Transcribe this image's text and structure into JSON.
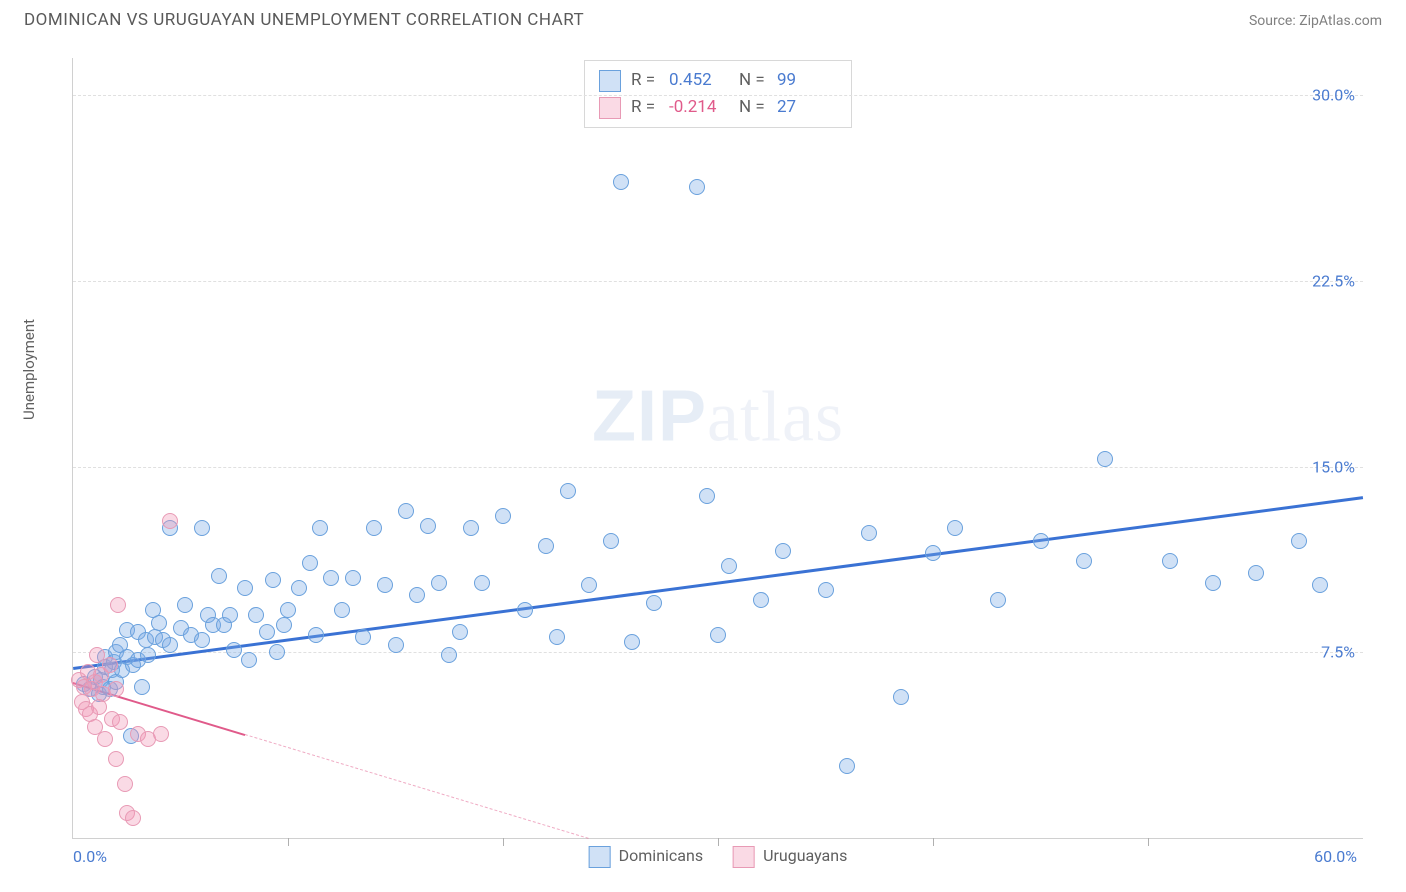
{
  "header": {
    "title": "DOMINICAN VS URUGUAYAN UNEMPLOYMENT CORRELATION CHART",
    "source": "Source: ZipAtlas.com"
  },
  "watermark": {
    "bold": "ZIP",
    "light": "atlas"
  },
  "chart": {
    "type": "scatter",
    "ylabel": "Unemployment",
    "xlim": [
      0,
      60
    ],
    "ylim": [
      0,
      31.5
    ],
    "grid_y": [
      7.5,
      15.0,
      22.5,
      30.0
    ],
    "xticks_minor": [
      10,
      20,
      30,
      40,
      50
    ],
    "xtick_labels": [
      {
        "v": 0,
        "t": "0.0%",
        "anchor": "left"
      },
      {
        "v": 60,
        "t": "60.0%",
        "anchor": "right"
      }
    ],
    "ytick_labels": [
      {
        "v": 7.5,
        "t": "7.5%"
      },
      {
        "v": 15.0,
        "t": "15.0%"
      },
      {
        "v": 22.5,
        "t": "22.5%"
      },
      {
        "v": 30.0,
        "t": "30.0%"
      }
    ],
    "background_color": "#ffffff",
    "grid_color": "#e0e0e0",
    "axis_color": "#d0d0d0",
    "tick_label_color": "#4a7bd0",
    "marker_radius": 8,
    "marker_border": 1,
    "series": [
      {
        "key": "dominicans",
        "label": "Dominicans",
        "fill": "rgba(120,170,230,0.35)",
        "stroke": "#6aa1dd",
        "reg_color": "#3a72d4",
        "reg_width": 3,
        "reg": {
          "x0": 0,
          "y0": 6.9,
          "x1": 60,
          "y1": 13.8,
          "solid_to_x": 60
        },
        "stats": {
          "R": "0.452",
          "N": "99",
          "r_color": "#4a7bd0",
          "n_color": "#4a7bd0"
        },
        "points": [
          [
            0.5,
            6.2
          ],
          [
            0.8,
            6.0
          ],
          [
            1.0,
            6.5
          ],
          [
            1.2,
            5.8
          ],
          [
            1.3,
            6.4
          ],
          [
            1.4,
            6.1
          ],
          [
            1.5,
            6.9
          ],
          [
            1.5,
            7.3
          ],
          [
            1.7,
            6.0
          ],
          [
            1.8,
            6.8
          ],
          [
            1.9,
            7.1
          ],
          [
            2.0,
            6.3
          ],
          [
            2.0,
            7.5
          ],
          [
            2.2,
            7.8
          ],
          [
            2.3,
            6.8
          ],
          [
            2.5,
            8.4
          ],
          [
            2.5,
            7.3
          ],
          [
            2.7,
            4.1
          ],
          [
            2.8,
            7.0
          ],
          [
            3.0,
            8.3
          ],
          [
            3.0,
            7.2
          ],
          [
            3.2,
            6.1
          ],
          [
            3.4,
            8.0
          ],
          [
            3.5,
            7.4
          ],
          [
            3.7,
            9.2
          ],
          [
            3.8,
            8.1
          ],
          [
            4.0,
            8.7
          ],
          [
            4.2,
            8.0
          ],
          [
            4.5,
            12.5
          ],
          [
            4.5,
            7.8
          ],
          [
            5.0,
            8.5
          ],
          [
            5.2,
            9.4
          ],
          [
            5.5,
            8.2
          ],
          [
            6.0,
            12.5
          ],
          [
            6.0,
            8.0
          ],
          [
            6.3,
            9.0
          ],
          [
            6.5,
            8.6
          ],
          [
            6.8,
            10.6
          ],
          [
            7.0,
            8.6
          ],
          [
            7.3,
            9.0
          ],
          [
            7.5,
            7.6
          ],
          [
            8.0,
            10.1
          ],
          [
            8.2,
            7.2
          ],
          [
            8.5,
            9.0
          ],
          [
            9.0,
            8.3
          ],
          [
            9.3,
            10.4
          ],
          [
            9.5,
            7.5
          ],
          [
            9.8,
            8.6
          ],
          [
            10.0,
            9.2
          ],
          [
            10.5,
            10.1
          ],
          [
            11.0,
            11.1
          ],
          [
            11.3,
            8.2
          ],
          [
            11.5,
            12.5
          ],
          [
            12.0,
            10.5
          ],
          [
            12.5,
            9.2
          ],
          [
            13.0,
            10.5
          ],
          [
            13.5,
            8.1
          ],
          [
            14.0,
            12.5
          ],
          [
            14.5,
            10.2
          ],
          [
            15.0,
            7.8
          ],
          [
            15.5,
            13.2
          ],
          [
            16.0,
            9.8
          ],
          [
            16.5,
            12.6
          ],
          [
            17.0,
            10.3
          ],
          [
            17.5,
            7.4
          ],
          [
            18.0,
            8.3
          ],
          [
            18.5,
            12.5
          ],
          [
            19.0,
            10.3
          ],
          [
            20.0,
            13.0
          ],
          [
            21.0,
            9.2
          ],
          [
            22.0,
            11.8
          ],
          [
            22.5,
            8.1
          ],
          [
            23.0,
            14.0
          ],
          [
            24.0,
            10.2
          ],
          [
            25.0,
            12.0
          ],
          [
            25.5,
            26.5
          ],
          [
            26.0,
            7.9
          ],
          [
            27.0,
            9.5
          ],
          [
            29.0,
            26.3
          ],
          [
            29.5,
            13.8
          ],
          [
            30.0,
            8.2
          ],
          [
            30.5,
            11.0
          ],
          [
            32.0,
            9.6
          ],
          [
            33.0,
            11.6
          ],
          [
            35.0,
            10.0
          ],
          [
            36.0,
            2.9
          ],
          [
            37.0,
            12.3
          ],
          [
            38.5,
            5.7
          ],
          [
            40.0,
            11.5
          ],
          [
            41.0,
            12.5
          ],
          [
            43.0,
            9.6
          ],
          [
            45.0,
            12.0
          ],
          [
            47.0,
            11.2
          ],
          [
            48.0,
            15.3
          ],
          [
            51.0,
            11.2
          ],
          [
            53.0,
            10.3
          ],
          [
            55.0,
            10.7
          ],
          [
            57.0,
            12.0
          ],
          [
            58.0,
            10.2
          ]
        ]
      },
      {
        "key": "uruguayans",
        "label": "Uruguayans",
        "fill": "rgba(240,150,180,0.35)",
        "stroke": "#e89ab5",
        "reg_color": "#e05a8a",
        "reg_width": 2.5,
        "reg": {
          "x0": 0,
          "y0": 6.3,
          "x1": 24,
          "y1": 0,
          "solid_to_x": 8
        },
        "stats": {
          "R": "-0.214",
          "N": "27",
          "r_color": "#e05a8a",
          "n_color": "#4a7bd0"
        },
        "points": [
          [
            0.3,
            6.4
          ],
          [
            0.4,
            5.5
          ],
          [
            0.5,
            6.1
          ],
          [
            0.6,
            5.2
          ],
          [
            0.7,
            6.7
          ],
          [
            0.8,
            5.0
          ],
          [
            0.9,
            6.0
          ],
          [
            1.0,
            6.3
          ],
          [
            1.0,
            4.5
          ],
          [
            1.1,
            7.4
          ],
          [
            1.2,
            5.3
          ],
          [
            1.3,
            6.6
          ],
          [
            1.4,
            5.8
          ],
          [
            1.5,
            4.0
          ],
          [
            1.7,
            7.0
          ],
          [
            1.8,
            4.8
          ],
          [
            2.0,
            6.0
          ],
          [
            2.0,
            3.2
          ],
          [
            2.1,
            9.4
          ],
          [
            2.2,
            4.7
          ],
          [
            2.4,
            2.2
          ],
          [
            2.5,
            1.0
          ],
          [
            2.8,
            0.8
          ],
          [
            3.0,
            4.2
          ],
          [
            3.5,
            4.0
          ],
          [
            4.1,
            4.2
          ],
          [
            4.5,
            12.8
          ]
        ]
      }
    ],
    "legend_bottom": [
      {
        "label": "Dominicans",
        "fill": "rgba(120,170,230,0.35)",
        "stroke": "#6aa1dd"
      },
      {
        "label": "Uruguayans",
        "fill": "rgba(240,150,180,0.35)",
        "stroke": "#e89ab5"
      }
    ]
  }
}
